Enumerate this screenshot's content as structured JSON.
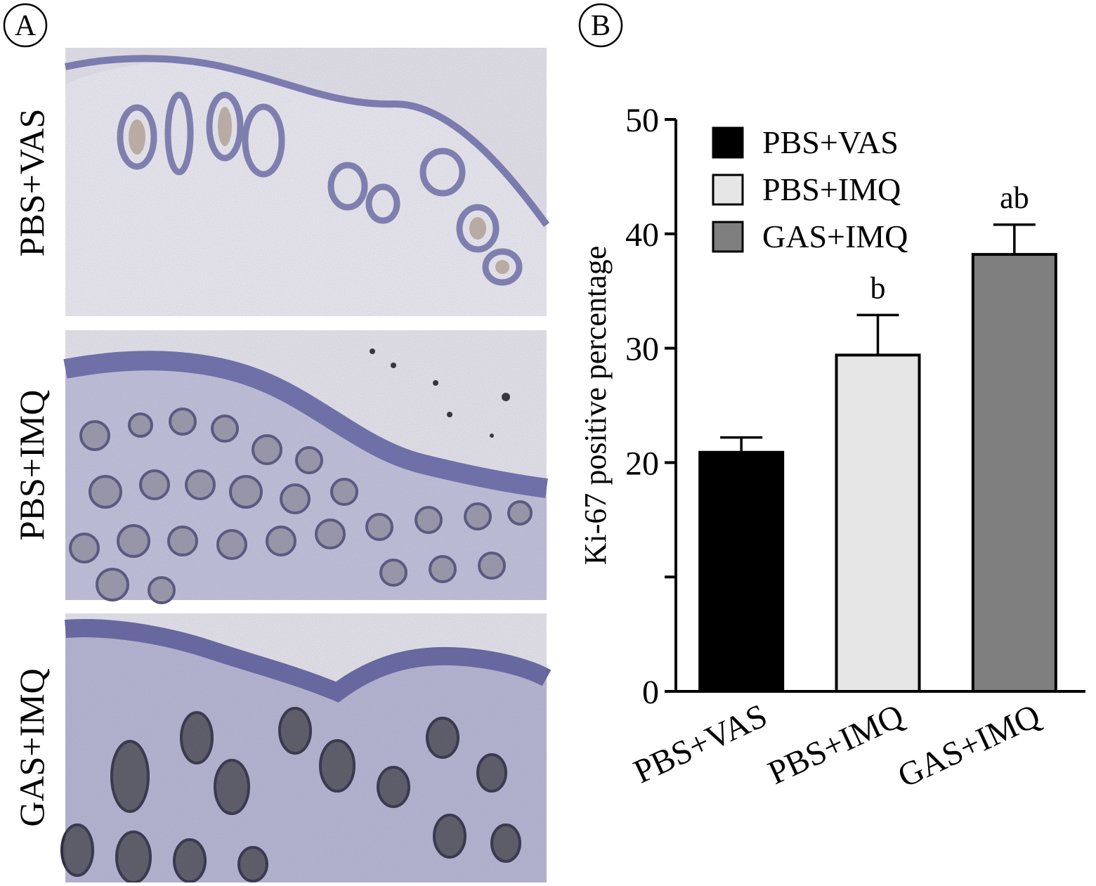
{
  "panel_a": {
    "label": "A",
    "rows": [
      {
        "label": "PBS+VAS"
      },
      {
        "label": "PBS+IMQ"
      },
      {
        "label": "GAS+IMQ"
      }
    ]
  },
  "panel_b": {
    "label": "B"
  },
  "colors": {
    "stain_background": "#e9e7ea",
    "hematoxylin": "#7b7bb0",
    "nuclei": "#3a3a5a",
    "follicle_brown": "#b09a80",
    "bar_vas": "#000000",
    "bar_imq": "#e6e6e6",
    "bar_gas": "#7f7f7f"
  },
  "chart_data": {
    "type": "bar",
    "categories": [
      "PBS+VAS",
      "PBS+IMQ",
      "GAS+IMQ"
    ],
    "values": [
      20.9,
      29.4,
      38.2
    ],
    "errors": [
      1.3,
      3.5,
      2.6
    ],
    "annotations": [
      "",
      "b",
      "ab"
    ],
    "colors": [
      "#000000",
      "#e6e6e6",
      "#7f7f7f"
    ],
    "ylabel": "Ki-67 positive percentage",
    "ylim": [
      0,
      50
    ],
    "yticks": [
      0,
      10,
      20,
      30,
      40,
      50
    ],
    "ytick_labels": [
      "0",
      "",
      "20",
      "30",
      "40",
      "50"
    ],
    "legend": [
      "PBS+VAS",
      "PBS+IMQ",
      "GAS+IMQ"
    ],
    "legend_position": "top-left",
    "grid": false
  }
}
